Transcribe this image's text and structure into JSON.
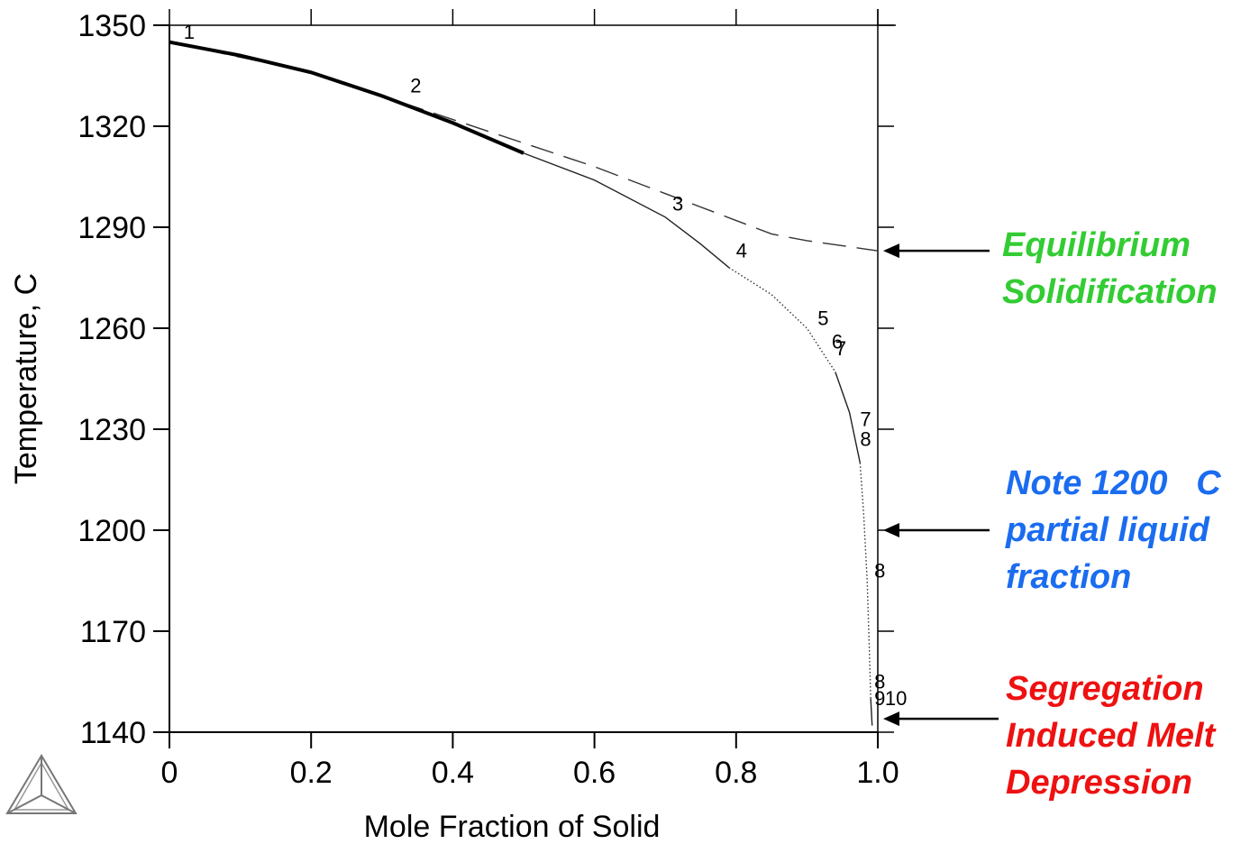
{
  "chart_data": {
    "type": "line",
    "xlabel": "Mole Fraction of Solid",
    "ylabel": "Temperature, C",
    "xlim": [
      0,
      1.0
    ],
    "ylim": [
      1140,
      1350
    ],
    "x_ticks": [
      "0",
      "0.2",
      "0.4",
      "0.6",
      "0.8",
      "1.0"
    ],
    "y_ticks": [
      "1140",
      "1170",
      "1200",
      "1230",
      "1260",
      "1290",
      "1320",
      "1350"
    ],
    "grid": false,
    "series": [
      {
        "style": "dashed",
        "points": [
          [
            0.0,
            1345
          ],
          [
            0.2,
            1336
          ],
          [
            0.3,
            1329
          ],
          [
            0.4,
            1322
          ],
          [
            0.5,
            1315
          ],
          [
            0.6,
            1308
          ],
          [
            0.7,
            1300
          ],
          [
            0.8,
            1292
          ],
          [
            0.85,
            1288
          ],
          [
            0.9,
            1286
          ],
          [
            1.0,
            1283
          ]
        ]
      },
      {
        "style": "solid-thick",
        "points": [
          [
            0.0,
            1345
          ],
          [
            0.1,
            1341
          ],
          [
            0.2,
            1336
          ],
          [
            0.3,
            1329
          ],
          [
            0.4,
            1321
          ],
          [
            0.5,
            1312
          ]
        ]
      },
      {
        "style": "solid-thin",
        "points": [
          [
            0.5,
            1312
          ],
          [
            0.6,
            1304
          ],
          [
            0.7,
            1293
          ],
          [
            0.75,
            1285
          ],
          [
            0.79,
            1278
          ]
        ]
      },
      {
        "style": "dotted",
        "points": [
          [
            0.79,
            1278
          ],
          [
            0.85,
            1270
          ],
          [
            0.9,
            1260
          ],
          [
            0.94,
            1247
          ]
        ]
      },
      {
        "style": "solid-thin",
        "points": [
          [
            0.94,
            1247
          ],
          [
            0.96,
            1235
          ],
          [
            0.975,
            1220
          ]
        ]
      },
      {
        "style": "dotted",
        "points": [
          [
            0.975,
            1220
          ],
          [
            0.98,
            1205
          ],
          [
            0.985,
            1185
          ],
          [
            0.988,
            1165
          ],
          [
            0.99,
            1150
          ]
        ]
      },
      {
        "style": "solid-thin",
        "points": [
          [
            0.99,
            1150
          ],
          [
            0.992,
            1142
          ]
        ]
      }
    ],
    "curve_labels": [
      {
        "text": "1",
        "x": 0.02,
        "y": 1346
      },
      {
        "text": "2",
        "x": 0.34,
        "y": 1330
      },
      {
        "text": "3",
        "x": 0.71,
        "y": 1295
      },
      {
        "text": "4",
        "x": 0.8,
        "y": 1281
      },
      {
        "text": "5",
        "x": 0.915,
        "y": 1261
      },
      {
        "text": "6",
        "x": 0.935,
        "y": 1254
      },
      {
        "text": "7",
        "x": 0.94,
        "y": 1252
      },
      {
        "text": "7",
        "x": 0.975,
        "y": 1231
      },
      {
        "text": "8",
        "x": 0.975,
        "y": 1225
      },
      {
        "text": "8",
        "x": 0.995,
        "y": 1186
      },
      {
        "text": "8",
        "x": 0.995,
        "y": 1153
      },
      {
        "text": "9",
        "x": 0.995,
        "y": 1148
      },
      {
        "text": "10",
        "x": 1.01,
        "y": 1148
      }
    ],
    "annotations": [
      {
        "lines": [
          "Equilibrium",
          "Solidification"
        ],
        "color": "#33cc33",
        "points_to_y": 1283
      },
      {
        "lines": [
          "Note 1200   C",
          "partial liquid",
          "fraction"
        ],
        "color": "#1a6cf0",
        "points_to_y": 1200
      },
      {
        "lines": [
          "Segregation",
          "Induced Melt",
          "Depression"
        ],
        "color": "#ee1111",
        "points_to_y": 1144
      }
    ]
  },
  "logo_icon": "thermo-calc-tetrahedron-icon"
}
